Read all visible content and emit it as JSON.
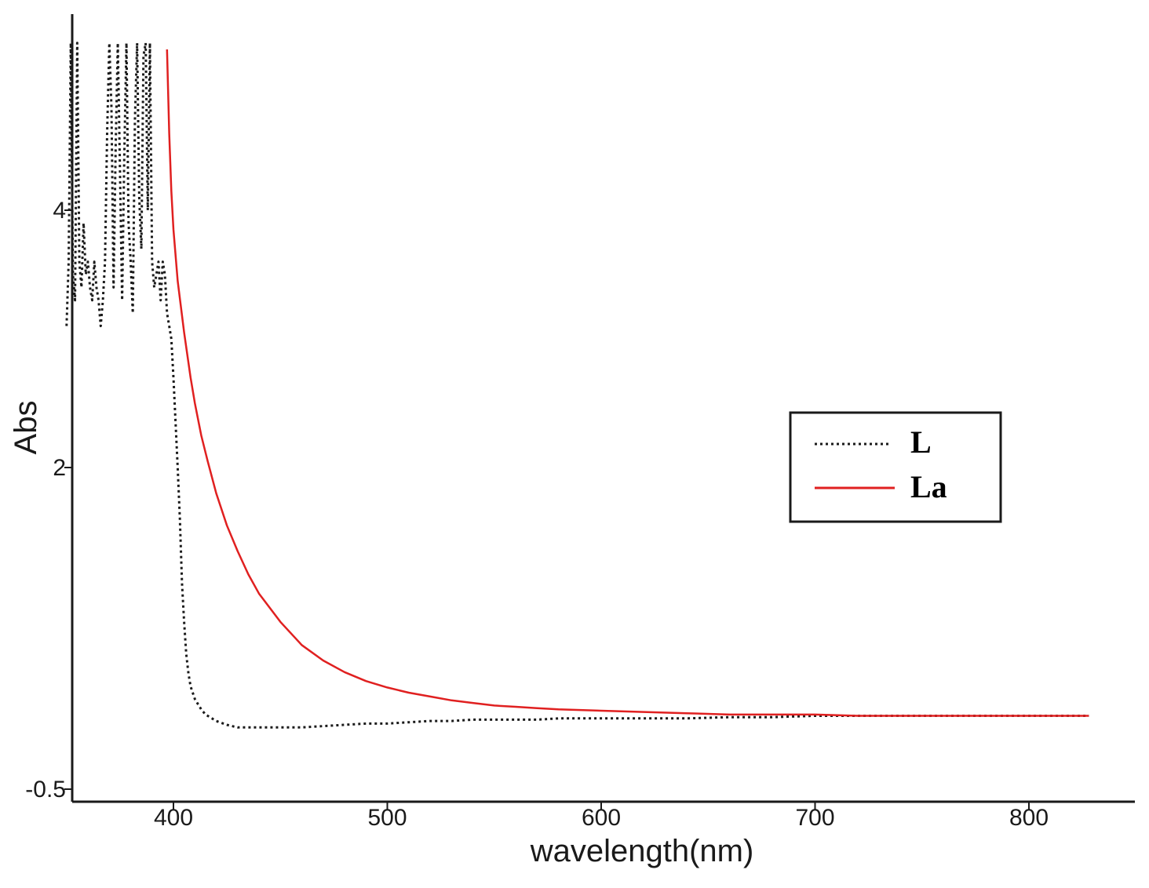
{
  "chart_data": {
    "type": "line",
    "title": "",
    "xlabel": "wavelength(nm)",
    "ylabel": "Abs",
    "xlim": [
      350,
      830
    ],
    "ylim": [
      -0.5,
      5.3
    ],
    "x_ticks": [
      400,
      500,
      600,
      700,
      800
    ],
    "x_tick_labels": [
      "400",
      "500",
      "600",
      "700",
      "800"
    ],
    "y_ticks": [
      -0.5,
      2,
      4
    ],
    "y_tick_labels": [
      "-0.5",
      "2",
      "4"
    ],
    "grid": false,
    "legend_position": "right",
    "series": [
      {
        "name": "L",
        "color": "#1a1a1a",
        "style": "dotted",
        "points": [
          [
            350,
            3.1
          ],
          [
            351,
            3.6
          ],
          [
            352,
            5.3
          ],
          [
            353,
            3.5
          ],
          [
            354,
            3.3
          ],
          [
            355,
            5.3
          ],
          [
            356,
            3.6
          ],
          [
            357,
            3.4
          ],
          [
            358,
            3.9
          ],
          [
            359,
            3.5
          ],
          [
            360,
            3.6
          ],
          [
            361,
            3.4
          ],
          [
            362,
            3.3
          ],
          [
            363,
            3.6
          ],
          [
            364,
            3.4
          ],
          [
            365,
            3.3
          ],
          [
            366,
            3.1
          ],
          [
            367,
            3.3
          ],
          [
            368,
            3.6
          ],
          [
            369,
            4.6
          ],
          [
            370,
            5.3
          ],
          [
            371,
            4.8
          ],
          [
            372,
            3.4
          ],
          [
            373,
            4.5
          ],
          [
            374,
            5.3
          ],
          [
            375,
            4.3
          ],
          [
            376,
            3.3
          ],
          [
            377,
            4.4
          ],
          [
            378,
            5.3
          ],
          [
            379,
            3.9
          ],
          [
            380,
            3.6
          ],
          [
            381,
            3.2
          ],
          [
            382,
            4.7
          ],
          [
            383,
            5.3
          ],
          [
            384,
            4.1
          ],
          [
            385,
            3.7
          ],
          [
            386,
            5.2
          ],
          [
            387,
            5.3
          ],
          [
            388,
            4.0
          ],
          [
            389,
            5.3
          ],
          [
            390,
            3.6
          ],
          [
            391,
            3.4
          ],
          [
            392,
            3.5
          ],
          [
            393,
            3.6
          ],
          [
            394,
            3.3
          ],
          [
            395,
            3.6
          ],
          [
            396,
            3.5
          ],
          [
            397,
            3.2
          ],
          [
            398,
            3.1
          ],
          [
            399,
            3.0
          ],
          [
            400,
            2.7
          ],
          [
            401,
            2.35
          ],
          [
            402,
            2.0
          ],
          [
            403,
            1.6
          ],
          [
            404,
            1.1
          ],
          [
            405,
            0.8
          ],
          [
            406,
            0.55
          ],
          [
            407,
            0.4
          ],
          [
            408,
            0.3
          ],
          [
            410,
            0.2
          ],
          [
            413,
            0.12
          ],
          [
            415,
            0.08
          ],
          [
            418,
            0.05
          ],
          [
            420,
            0.03
          ],
          [
            425,
            0.0
          ],
          [
            430,
            -0.02
          ],
          [
            440,
            -0.02
          ],
          [
            450,
            -0.02
          ],
          [
            460,
            -0.02
          ],
          [
            470,
            -0.01
          ],
          [
            480,
            0.0
          ],
          [
            490,
            0.01
          ],
          [
            500,
            0.01
          ],
          [
            510,
            0.02
          ],
          [
            520,
            0.03
          ],
          [
            530,
            0.03
          ],
          [
            540,
            0.04
          ],
          [
            550,
            0.04
          ],
          [
            560,
            0.04
          ],
          [
            570,
            0.04
          ],
          [
            580,
            0.05
          ],
          [
            600,
            0.05
          ],
          [
            620,
            0.05
          ],
          [
            640,
            0.05
          ],
          [
            660,
            0.06
          ],
          [
            680,
            0.06
          ],
          [
            700,
            0.07
          ],
          [
            720,
            0.07
          ],
          [
            740,
            0.07
          ],
          [
            760,
            0.07
          ],
          [
            780,
            0.07
          ],
          [
            800,
            0.07
          ],
          [
            820,
            0.07
          ],
          [
            828,
            0.07
          ]
        ]
      },
      {
        "name": "La",
        "color": "#e02020",
        "style": "solid",
        "points": [
          [
            397,
            5.25
          ],
          [
            398,
            4.6
          ],
          [
            399,
            4.15
          ],
          [
            400,
            3.85
          ],
          [
            402,
            3.45
          ],
          [
            405,
            3.05
          ],
          [
            408,
            2.7
          ],
          [
            410,
            2.5
          ],
          [
            413,
            2.25
          ],
          [
            416,
            2.05
          ],
          [
            420,
            1.8
          ],
          [
            425,
            1.55
          ],
          [
            430,
            1.35
          ],
          [
            435,
            1.17
          ],
          [
            440,
            1.02
          ],
          [
            450,
            0.8
          ],
          [
            460,
            0.62
          ],
          [
            470,
            0.5
          ],
          [
            480,
            0.41
          ],
          [
            490,
            0.34
          ],
          [
            500,
            0.29
          ],
          [
            510,
            0.25
          ],
          [
            520,
            0.22
          ],
          [
            530,
            0.19
          ],
          [
            540,
            0.17
          ],
          [
            550,
            0.15
          ],
          [
            560,
            0.14
          ],
          [
            570,
            0.13
          ],
          [
            580,
            0.12
          ],
          [
            600,
            0.11
          ],
          [
            620,
            0.1
          ],
          [
            640,
            0.09
          ],
          [
            660,
            0.08
          ],
          [
            680,
            0.08
          ],
          [
            700,
            0.08
          ],
          [
            720,
            0.07
          ],
          [
            740,
            0.07
          ],
          [
            760,
            0.07
          ],
          [
            780,
            0.07
          ],
          [
            800,
            0.07
          ],
          [
            820,
            0.07
          ],
          [
            828,
            0.07
          ]
        ]
      }
    ]
  }
}
